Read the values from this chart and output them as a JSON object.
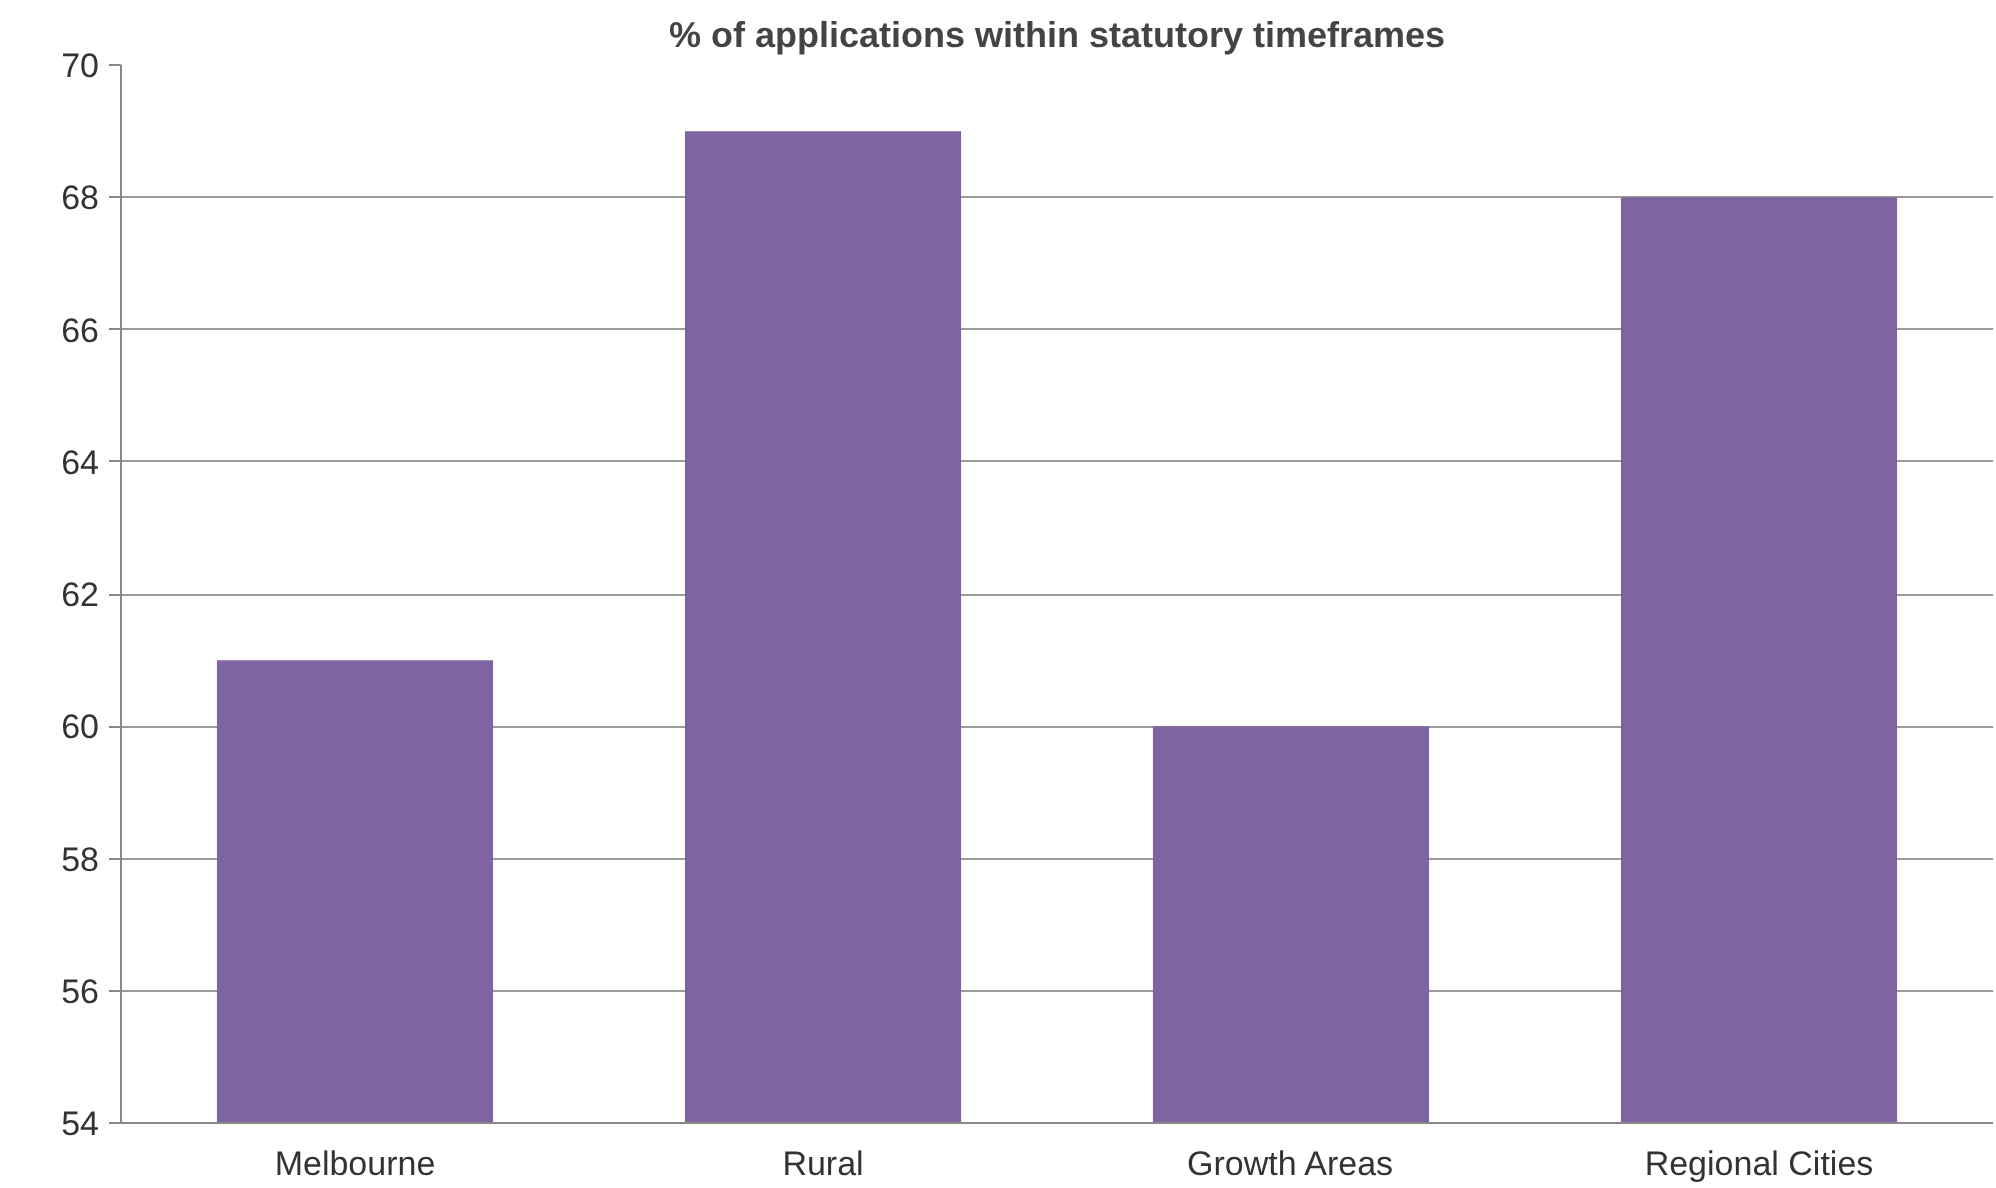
{
  "chart_data": {
    "type": "bar",
    "title": "% of applications within statutory timeframes",
    "categories": [
      "Melbourne",
      "Rural",
      "Growth Areas",
      "Regional Cities"
    ],
    "values": [
      61,
      69,
      60,
      68
    ],
    "color": "#8064a2",
    "ylim": [
      54,
      70
    ],
    "yticks": [
      54,
      56,
      58,
      60,
      62,
      64,
      66,
      68,
      70
    ],
    "grid": "y"
  }
}
